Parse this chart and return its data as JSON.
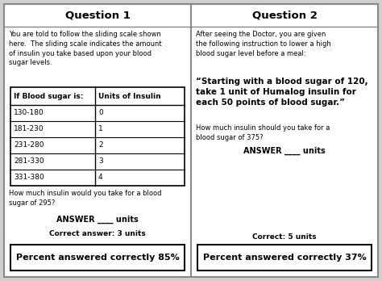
{
  "title1": "Question 1",
  "title2": "Question 2",
  "q1_intro": "You are told to follow the sliding scale shown\nhere.  The sliding scale indicates the amount\nof insulin you take based upon your blood\nsugar levels.",
  "table_headers": [
    "If Blood sugar is:",
    "Units of Insulin"
  ],
  "table_rows": [
    [
      "130-180",
      "0"
    ],
    [
      "181-230",
      "1"
    ],
    [
      "231-280",
      "2"
    ],
    [
      "281-330",
      "3"
    ],
    [
      "331-380",
      "4"
    ]
  ],
  "q1_question": "How much insulin would you take for a blood\nsugar of 295?",
  "q1_answer": "ANSWER ____ units",
  "q1_correct": "Correct answer: 3 units",
  "q1_percent": "Percent answered correctly 85%",
  "q2_intro": "After seeing the Doctor, you are given\nthe following instruction to lower a high\nblood sugar level before a meal:",
  "q2_quote": "“Starting with a blood sugar of 120,\ntake 1 unit of Humalog insulin for\neach 50 points of blood sugar.”",
  "q2_question": "How much insulin should you take for a\nblood sugar of 375?",
  "q2_answer": "ANSWER ____ units",
  "q2_correct": "Correct: 5 units",
  "q2_percent": "Percent answered correctly 37%",
  "bg_color": "#d0d0d0",
  "panel_color": "#ffffff"
}
